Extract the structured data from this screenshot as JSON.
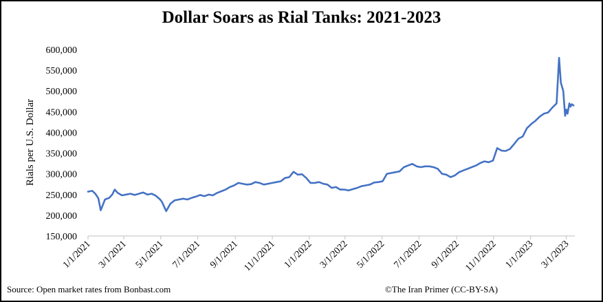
{
  "title": "Dollar Soars as Rial Tanks: 2021-2023",
  "source": "Source: Open market rates from Bonbast.com",
  "credit": "©The Iran Primer (CC-BY-SA)",
  "chart_data": {
    "type": "line",
    "title": "Dollar Soars as Rial Tanks: 2021-2023",
    "ylabel": "Rials per U.S. Dollar",
    "xlabel": "",
    "ylim": [
      150000,
      600000
    ],
    "yticks": [
      150000,
      200000,
      250000,
      300000,
      350000,
      400000,
      450000,
      500000,
      550000,
      600000
    ],
    "ytick_labels": [
      "150,000",
      "200,000",
      "250,000",
      "300,000",
      "350,000",
      "400,000",
      "450,000",
      "500,000",
      "550,000",
      "600,000"
    ],
    "xlim": [
      "2021-01-01",
      "2023-03-15"
    ],
    "xtick_labels": [
      "1/1/2021",
      "3/1/2021",
      "5/1/2021",
      "7/1/2021",
      "9/1/2021",
      "11/1/2021",
      "1/1/2022",
      "3/1/2022",
      "5/1/2022",
      "7/1/2022",
      "9/1/2022",
      "11/1/2022",
      "1/1/2023",
      "3/1/2023"
    ],
    "xtick_dates": [
      "2021-01-01",
      "2021-03-01",
      "2021-05-01",
      "2021-07-01",
      "2021-09-01",
      "2021-11-01",
      "2022-01-01",
      "2022-03-01",
      "2022-05-01",
      "2022-07-01",
      "2022-09-01",
      "2022-11-01",
      "2023-01-01",
      "2023-03-01"
    ],
    "grid": false,
    "color": "#4472c4",
    "series": [
      {
        "x": [
          "2021-01-01",
          "2021-01-08",
          "2021-01-13",
          "2021-01-18",
          "2021-01-22",
          "2021-01-29",
          "2021-02-05",
          "2021-02-10",
          "2021-02-14",
          "2021-02-19",
          "2021-02-26",
          "2021-03-05",
          "2021-03-12",
          "2021-03-19",
          "2021-03-26",
          "2021-04-02",
          "2021-04-09",
          "2021-04-16",
          "2021-04-23",
          "2021-04-30",
          "2021-05-03",
          "2021-05-10",
          "2021-05-17",
          "2021-05-24",
          "2021-05-31",
          "2021-06-07",
          "2021-06-14",
          "2021-06-21",
          "2021-06-28",
          "2021-07-05",
          "2021-07-12",
          "2021-07-19",
          "2021-07-26",
          "2021-08-02",
          "2021-08-09",
          "2021-08-16",
          "2021-08-23",
          "2021-08-30",
          "2021-09-06",
          "2021-09-13",
          "2021-09-20",
          "2021-09-27",
          "2021-10-04",
          "2021-10-11",
          "2021-10-18",
          "2021-10-25",
          "2021-11-01",
          "2021-11-08",
          "2021-11-15",
          "2021-11-22",
          "2021-11-29",
          "2021-12-06",
          "2021-12-13",
          "2021-12-20",
          "2021-12-27",
          "2022-01-03",
          "2022-01-10",
          "2022-01-17",
          "2022-01-24",
          "2022-01-31",
          "2022-02-07",
          "2022-02-14",
          "2022-02-21",
          "2022-02-28",
          "2022-03-07",
          "2022-03-14",
          "2022-03-21",
          "2022-03-28",
          "2022-04-04",
          "2022-04-11",
          "2022-04-18",
          "2022-04-25",
          "2022-05-02",
          "2022-05-09",
          "2022-05-16",
          "2022-05-23",
          "2022-05-30",
          "2022-06-06",
          "2022-06-13",
          "2022-06-20",
          "2022-06-27",
          "2022-07-04",
          "2022-07-11",
          "2022-07-18",
          "2022-07-25",
          "2022-08-01",
          "2022-08-08",
          "2022-08-15",
          "2022-08-22",
          "2022-08-29",
          "2022-09-05",
          "2022-09-12",
          "2022-09-19",
          "2022-09-26",
          "2022-10-03",
          "2022-10-10",
          "2022-10-17",
          "2022-10-24",
          "2022-10-31",
          "2022-11-07",
          "2022-11-14",
          "2022-11-21",
          "2022-11-28",
          "2022-12-05",
          "2022-12-12",
          "2022-12-19",
          "2022-12-26",
          "2023-01-02",
          "2023-01-09",
          "2023-01-16",
          "2023-01-23",
          "2023-01-30",
          "2023-02-06",
          "2023-02-13",
          "2023-02-17",
          "2023-02-20",
          "2023-02-24",
          "2023-02-27",
          "2023-03-01",
          "2023-03-03",
          "2023-03-06",
          "2023-03-08",
          "2023-03-10",
          "2023-03-13"
        ],
        "values": [
          257000,
          259000,
          252000,
          241000,
          212000,
          238000,
          242000,
          250000,
          262000,
          254000,
          248000,
          250000,
          252000,
          249000,
          252000,
          255000,
          250000,
          252000,
          247000,
          238000,
          232000,
          210000,
          228000,
          236000,
          238000,
          240000,
          238000,
          242000,
          245000,
          249000,
          246000,
          250000,
          248000,
          254000,
          258000,
          262000,
          268000,
          272000,
          278000,
          276000,
          274000,
          275000,
          280000,
          278000,
          274000,
          276000,
          278000,
          280000,
          282000,
          290000,
          292000,
          305000,
          298000,
          299000,
          290000,
          278000,
          278000,
          280000,
          276000,
          274000,
          266000,
          268000,
          262000,
          262000,
          260000,
          263000,
          266000,
          270000,
          272000,
          274000,
          279000,
          280000,
          282000,
          300000,
          302000,
          304000,
          306000,
          316000,
          320000,
          324000,
          318000,
          316000,
          318000,
          318000,
          316000,
          312000,
          300000,
          298000,
          292000,
          296000,
          304000,
          308000,
          312000,
          316000,
          320000,
          326000,
          330000,
          328000,
          332000,
          362000,
          356000,
          355000,
          360000,
          372000,
          385000,
          390000,
          410000,
          420000,
          428000,
          438000,
          445000,
          448000,
          460000,
          470000,
          580000,
          520000,
          500000,
          440000,
          455000,
          445000,
          470000,
          462000,
          468000,
          465000
        ]
      }
    ]
  }
}
